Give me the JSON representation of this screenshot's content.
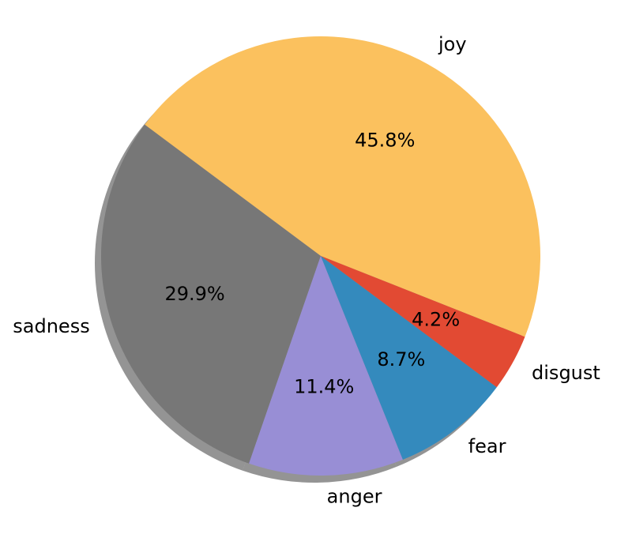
{
  "chart_data": {
    "type": "pie",
    "title": "",
    "slices": [
      {
        "label": "joy",
        "pct_text": "45.8%",
        "value": 45.8,
        "color": "#FBC15E"
      },
      {
        "label": "sadness",
        "pct_text": "29.9%",
        "value": 29.9,
        "color": "#777777"
      },
      {
        "label": "anger",
        "pct_text": "11.4%",
        "value": 11.4,
        "color": "#988ED5"
      },
      {
        "label": "fear",
        "pct_text": "8.7%",
        "value": 8.7,
        "color": "#348ABD"
      },
      {
        "label": "disgust",
        "pct_text": "4.2%",
        "value": 4.2,
        "color": "#E24A33"
      }
    ],
    "shadow": true,
    "legend": "none"
  }
}
